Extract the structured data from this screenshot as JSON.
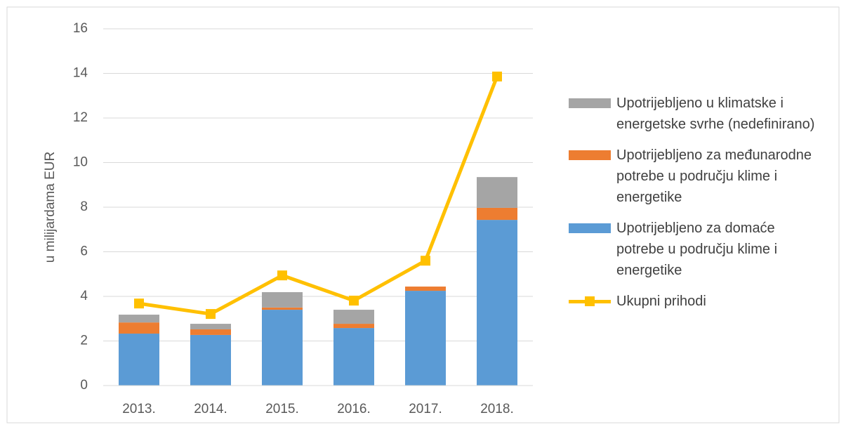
{
  "chart_data": {
    "type": "bar",
    "stacked": true,
    "y_label": "u milijardama EUR",
    "categories": [
      "2013.",
      "2014.",
      "2015.",
      "2016.",
      "2017.",
      "2018."
    ],
    "series": [
      {
        "name": "Upotrijebljeno za domaće potrebe u području klime i energetike",
        "color": "#5b9bd5",
        "values": [
          2.33,
          2.27,
          3.4,
          2.58,
          4.25,
          7.43
        ]
      },
      {
        "name": "Upotrijebljeno za međunarodne potrebe u području klime i energetike",
        "color": "#ed7d31",
        "values": [
          0.5,
          0.25,
          0.1,
          0.19,
          0.19,
          0.54
        ]
      },
      {
        "name": "Upotrijebljeno u klimatske i energetske svrhe (nedefinirano)",
        "color": "#a5a5a5",
        "values": [
          0.35,
          0.25,
          0.69,
          0.63,
          0,
          1.38
        ]
      },
      {
        "name": "Ukupni prihodi",
        "type": "line",
        "color": "#ffc000",
        "values": [
          3.68,
          3.21,
          4.94,
          3.81,
          5.6,
          13.86
        ]
      }
    ],
    "ylim": [
      0,
      16
    ],
    "yticks": [
      0,
      2,
      4,
      6,
      8,
      10,
      12,
      14,
      16
    ],
    "grid": true
  }
}
